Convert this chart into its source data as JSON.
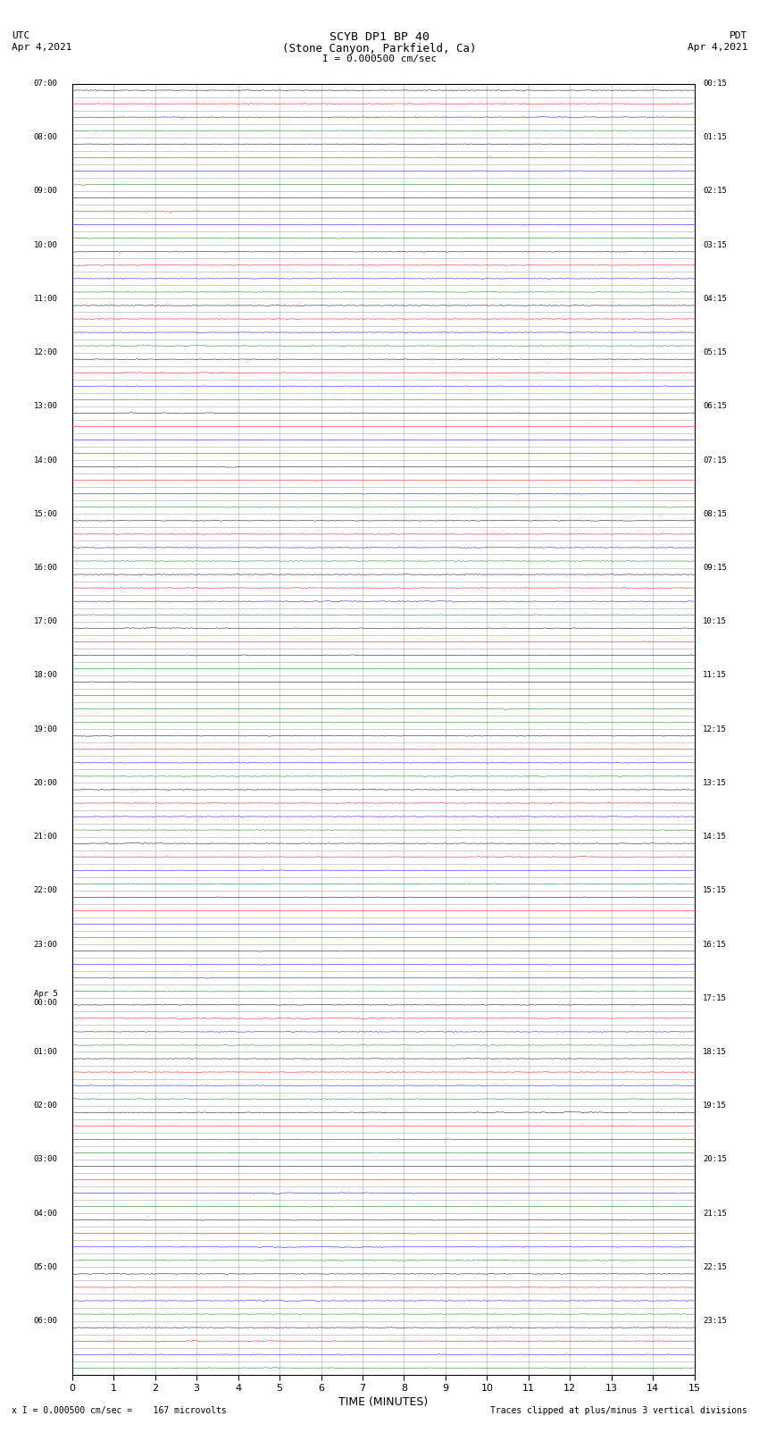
{
  "title_line1": "SCYB DP1 BP 40",
  "title_line2": "(Stone Canyon, Parkfield, Ca)",
  "scale_label": "I = 0.000500 cm/sec",
  "utc_label": "UTC",
  "utc_date": "Apr 4,2021",
  "pdt_label": "PDT",
  "pdt_date": "Apr 4,2021",
  "bottom_left": "x I = 0.000500 cm/sec =    167 microvolts",
  "bottom_right": "Traces clipped at plus/minus 3 vertical divisions",
  "xlabel": "TIME (MINUTES)",
  "minutes_per_trace": 15,
  "x_ticks": [
    0,
    1,
    2,
    3,
    4,
    5,
    6,
    7,
    8,
    9,
    10,
    11,
    12,
    13,
    14,
    15
  ],
  "left_labels": [
    "07:00",
    "",
    "",
    "",
    "08:00",
    "",
    "",
    "",
    "09:00",
    "",
    "",
    "",
    "10:00",
    "",
    "",
    "",
    "11:00",
    "",
    "",
    "",
    "12:00",
    "",
    "",
    "",
    "13:00",
    "",
    "",
    "",
    "14:00",
    "",
    "",
    "",
    "15:00",
    "",
    "",
    "",
    "16:00",
    "",
    "",
    "",
    "17:00",
    "",
    "",
    "",
    "18:00",
    "",
    "",
    "",
    "19:00",
    "",
    "",
    "",
    "20:00",
    "",
    "",
    "",
    "21:00",
    "",
    "",
    "",
    "22:00",
    "",
    "",
    "",
    "23:00",
    "",
    "",
    "",
    "Apr 5\n00:00",
    "",
    "",
    "",
    "01:00",
    "",
    "",
    "",
    "02:00",
    "",
    "",
    "",
    "03:00",
    "",
    "",
    "",
    "04:00",
    "",
    "",
    "",
    "05:00",
    "",
    "",
    "",
    "06:00",
    "",
    "",
    ""
  ],
  "right_labels": [
    "00:15",
    "",
    "",
    "",
    "01:15",
    "",
    "",
    "",
    "02:15",
    "",
    "",
    "",
    "03:15",
    "",
    "",
    "",
    "04:15",
    "",
    "",
    "",
    "05:15",
    "",
    "",
    "",
    "06:15",
    "",
    "",
    "",
    "07:15",
    "",
    "",
    "",
    "08:15",
    "",
    "",
    "",
    "09:15",
    "",
    "",
    "",
    "10:15",
    "",
    "",
    "",
    "11:15",
    "",
    "",
    "",
    "12:15",
    "",
    "",
    "",
    "13:15",
    "",
    "",
    "",
    "14:15",
    "",
    "",
    "",
    "15:15",
    "",
    "",
    "",
    "16:15",
    "",
    "",
    "",
    "17:15",
    "",
    "",
    "",
    "18:15",
    "",
    "",
    "",
    "19:15",
    "",
    "",
    "",
    "20:15",
    "",
    "",
    "",
    "21:15",
    "",
    "",
    "",
    "22:15",
    "",
    "",
    "",
    "23:15",
    "",
    "",
    ""
  ],
  "background_color": "#ffffff",
  "grid_color": "#aaaaaa",
  "figure_width": 8.5,
  "figure_height": 16.13,
  "num_hours": 24,
  "traces_per_hour": 4,
  "samples_per_trace": 600
}
